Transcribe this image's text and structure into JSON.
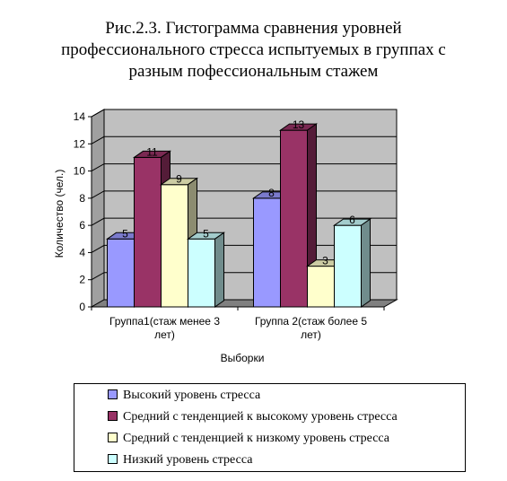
{
  "chart_data": {
    "type": "bar",
    "title_lines": [
      "Рис.2.3. Гистограмма сравнения уровней",
      "профессионального стресса испытуемых в группах с",
      "разным пофессиональным стажем"
    ],
    "ylabel": "Количество (чел.)",
    "xlabel": "Выборки",
    "ylim": [
      0,
      14
    ],
    "yticks": [
      0,
      2,
      4,
      6,
      8,
      10,
      12,
      14
    ],
    "grid": true,
    "categories": [
      [
        "Группа1(стаж менее 3",
        "лет)"
      ],
      [
        "Группа 2(стаж более 5",
        "лет)"
      ]
    ],
    "series": [
      {
        "name": "Высокий уровень стресса",
        "values": [
          5,
          8
        ],
        "color": "#9999FF"
      },
      {
        "name": "Средний с тенденцией к высокому уровень стресса",
        "values": [
          11,
          13
        ],
        "color": "#993366"
      },
      {
        "name": "Средний с тенденцией к низкому уровень стресса",
        "values": [
          9,
          3
        ],
        "color": "#FFFFCC"
      },
      {
        "name": "Низкий уровень стресса",
        "values": [
          5,
          6
        ],
        "color": "#CCFFFF"
      }
    ],
    "legend_position": "bottom",
    "wall_color": "#C0C0C0",
    "floor_color": "#808080"
  }
}
